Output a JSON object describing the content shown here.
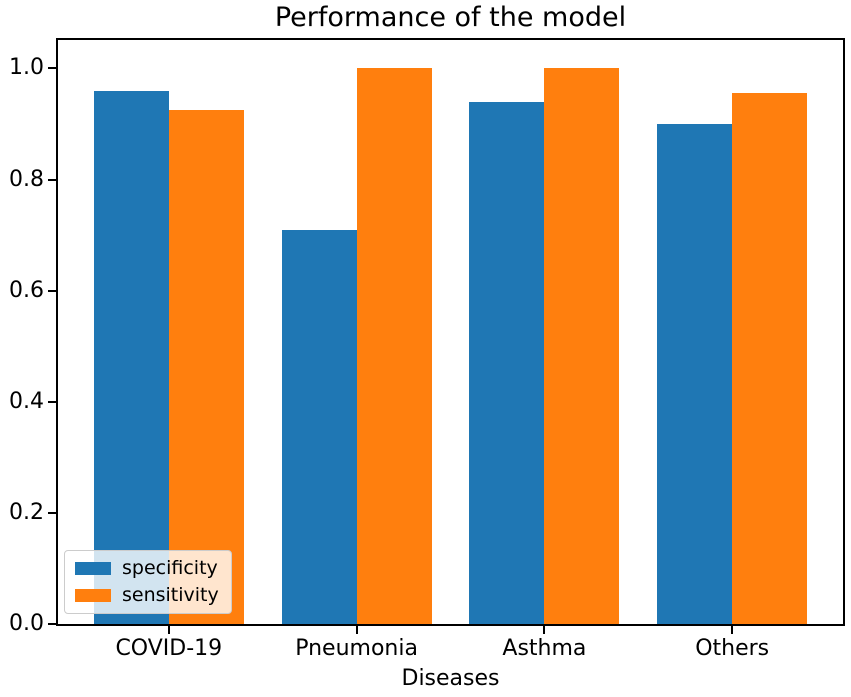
{
  "chart_data": {
    "type": "bar",
    "title": "Performance of the model",
    "xlabel": "Diseases",
    "ylabel": "",
    "categories": [
      "COVID-19",
      "Pneumonia",
      "Asthma",
      "Others"
    ],
    "series": [
      {
        "name": "specificity",
        "color": "#1f77b4",
        "values": [
          0.96,
          0.71,
          0.94,
          0.9
        ]
      },
      {
        "name": "sensitivity",
        "color": "#ff7f0e",
        "values": [
          0.925,
          1.0,
          1.0,
          0.955
        ]
      }
    ],
    "bar_width": 0.4,
    "ylim": [
      0,
      1.051
    ],
    "xlim": [
      -0.59,
      3.59
    ],
    "yticks": [
      0.0,
      0.2,
      0.4,
      0.6,
      0.8,
      1.0
    ],
    "ytick_labels": [
      "0.0",
      "0.2",
      "0.4",
      "0.6",
      "0.8",
      "1.0"
    ],
    "legend_position": "lower left",
    "grid": false,
    "spine_color": "#000000",
    "background_color": "#ffffff"
  }
}
